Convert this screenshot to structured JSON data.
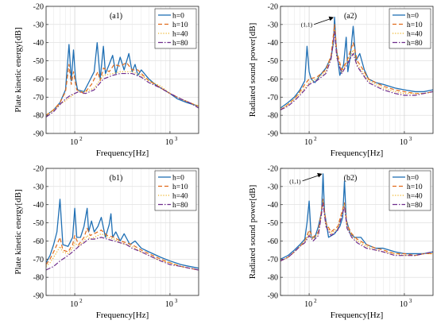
{
  "chart_data": [
    {
      "id": "a1",
      "type": "line",
      "panel_label": "(a1)",
      "xlabel": "Frequency[Hz]",
      "ylabel": "Plate kinetic energy[dB]",
      "xscale": "log",
      "xlim": [
        50,
        2000
      ],
      "ylim": [
        -90,
        -20
      ],
      "yticks": [
        -90,
        -80,
        -70,
        -60,
        -50,
        -40,
        -30,
        -20
      ],
      "xticks": [
        {
          "value": 100,
          "base": "10",
          "exp": "2"
        },
        {
          "value": 1000,
          "base": "10",
          "exp": "3"
        }
      ],
      "grid": true,
      "legend": "top-right",
      "annotation": null,
      "series": [
        {
          "name": "h=0",
          "color": "#1f6fb4",
          "dash": "solid",
          "x": [
            50,
            60,
            70,
            80,
            87,
            92,
            97,
            102,
            107,
            125,
            140,
            160,
            172,
            185,
            200,
            210,
            230,
            250,
            270,
            300,
            330,
            370,
            400,
            430,
            460,
            500,
            600,
            700,
            800,
            1000,
            1200,
            1500,
            2000
          ],
          "y": [
            -80,
            -77,
            -73,
            -66,
            -41,
            -61,
            -44,
            -60,
            -66,
            -67,
            -62,
            -56,
            -40,
            -60,
            -42,
            -57,
            -52,
            -47,
            -57,
            -48,
            -55,
            -46,
            -56,
            -52,
            -58,
            -55,
            -60,
            -63,
            -65,
            -68,
            -71,
            -73,
            -75
          ]
        },
        {
          "name": "h=10",
          "color": "#e06a1b",
          "dash": "dashed",
          "x": [
            50,
            60,
            70,
            80,
            87,
            92,
            97,
            105,
            125,
            150,
            175,
            185,
            200,
            230,
            260,
            300,
            350,
            400,
            460,
            500,
            600,
            700,
            800,
            1000,
            1300,
            1600,
            2000
          ],
          "y": [
            -80,
            -77,
            -73,
            -67,
            -52,
            -63,
            -56,
            -66,
            -68,
            -63,
            -56,
            -61,
            -54,
            -56,
            -52,
            -53,
            -51,
            -55,
            -55,
            -57,
            -61,
            -63,
            -65,
            -68,
            -71,
            -73,
            -75
          ]
        },
        {
          "name": "h=40",
          "color": "#edb120",
          "dash": "dotted",
          "x": [
            50,
            60,
            70,
            80,
            90,
            100,
            110,
            130,
            160,
            200,
            250,
            300,
            400,
            500,
            600,
            800,
            1000,
            1300,
            1600,
            2000
          ],
          "y": [
            -80,
            -77,
            -74,
            -72,
            -70,
            -68,
            -67,
            -67,
            -65,
            -58,
            -57,
            -56,
            -56,
            -58,
            -61,
            -64,
            -68,
            -71,
            -73,
            -75
          ]
        },
        {
          "name": "h=80",
          "color": "#6e2c8c",
          "dash": "dashdot",
          "x": [
            50,
            60,
            70,
            80,
            90,
            100,
            110,
            130,
            160,
            200,
            250,
            300,
            400,
            500,
            600,
            800,
            1000,
            1300,
            1600,
            2000
          ],
          "y": [
            -81,
            -78,
            -74,
            -71,
            -69,
            -68,
            -67,
            -68,
            -66,
            -60,
            -58,
            -57,
            -57,
            -59,
            -62,
            -65,
            -68,
            -71,
            -73,
            -76
          ]
        }
      ]
    },
    {
      "id": "a2",
      "type": "line",
      "panel_label": "(a2)",
      "xlabel": "Frequency[Hz]",
      "ylabel": "Radiated sound power[dB]",
      "xscale": "log",
      "xlim": [
        50,
        2000
      ],
      "ylim": [
        -90,
        -20
      ],
      "yticks": [
        -90,
        -80,
        -70,
        -60,
        -50,
        -40,
        -30,
        -20
      ],
      "xticks": [
        {
          "value": 100,
          "base": "10",
          "exp": "2"
        },
        {
          "value": 1000,
          "base": "10",
          "exp": "3"
        }
      ],
      "grid": true,
      "legend": "top-right",
      "annotation": {
        "text": "(1,1)",
        "x": 185,
        "y": -26
      },
      "series": [
        {
          "name": "h=0",
          "color": "#1f6fb4",
          "dash": "solid",
          "x": [
            50,
            60,
            70,
            80,
            90,
            95,
            100,
            105,
            115,
            130,
            150,
            170,
            180,
            185,
            192,
            210,
            230,
            245,
            255,
            270,
            290,
            310,
            340,
            380,
            420,
            500,
            600,
            800,
            1000,
            1300,
            1600,
            2000
          ],
          "y": [
            -76,
            -73,
            -70,
            -66,
            -61,
            -42,
            -56,
            -60,
            -62,
            -58,
            -54,
            -48,
            -40,
            -26,
            -42,
            -58,
            -52,
            -37,
            -56,
            -48,
            -31,
            -50,
            -46,
            -55,
            -60,
            -62,
            -63,
            -65,
            -66,
            -67,
            -67,
            -66
          ]
        },
        {
          "name": "h=10",
          "color": "#e06a1b",
          "dash": "dashed",
          "x": [
            50,
            60,
            70,
            80,
            90,
            100,
            120,
            150,
            170,
            185,
            195,
            220,
            250,
            290,
            320,
            360,
            420,
            500,
            600,
            800,
            1000,
            1300,
            1600,
            2000
          ],
          "y": [
            -77,
            -74,
            -71,
            -67,
            -63,
            -60,
            -59,
            -55,
            -47,
            -30,
            -45,
            -55,
            -50,
            -40,
            -50,
            -54,
            -60,
            -62,
            -64,
            -66,
            -67,
            -68,
            -68,
            -67
          ]
        },
        {
          "name": "h=40",
          "color": "#edb120",
          "dash": "dotted",
          "x": [
            50,
            60,
            70,
            80,
            90,
            100,
            120,
            150,
            170,
            185,
            195,
            220,
            250,
            290,
            320,
            360,
            420,
            500,
            600,
            800,
            1000,
            1300,
            1600,
            2000
          ],
          "y": [
            -77,
            -74,
            -71,
            -68,
            -65,
            -62,
            -60,
            -56,
            -48,
            -33,
            -47,
            -56,
            -51,
            -44,
            -52,
            -56,
            -61,
            -63,
            -65,
            -67,
            -68,
            -68,
            -68,
            -67
          ]
        },
        {
          "name": "h=80",
          "color": "#6e2c8c",
          "dash": "dashdot",
          "x": [
            50,
            60,
            70,
            80,
            90,
            100,
            120,
            150,
            170,
            185,
            195,
            220,
            250,
            290,
            320,
            360,
            420,
            500,
            600,
            800,
            1000,
            1300,
            1600,
            2000
          ],
          "y": [
            -77,
            -75,
            -72,
            -69,
            -66,
            -63,
            -61,
            -57,
            -49,
            -34,
            -48,
            -57,
            -52,
            -46,
            -53,
            -57,
            -62,
            -64,
            -66,
            -68,
            -69,
            -69,
            -68,
            -67
          ]
        }
      ]
    },
    {
      "id": "b1",
      "type": "line",
      "panel_label": "(b1)",
      "xlabel": "Frequency[Hz]",
      "ylabel": "Plate kinetic energy[dB]",
      "xscale": "log",
      "xlim": [
        50,
        2000
      ],
      "ylim": [
        -90,
        -20
      ],
      "yticks": [
        -90,
        -80,
        -70,
        -60,
        -50,
        -40,
        -30,
        -20
      ],
      "xticks": [
        {
          "value": 100,
          "base": "10",
          "exp": "2"
        },
        {
          "value": 1000,
          "base": "10",
          "exp": "3"
        }
      ],
      "grid": true,
      "legend": "top-right",
      "annotation": null,
      "series": [
        {
          "name": "h=0",
          "color": "#1f6fb4",
          "dash": "solid",
          "x": [
            50,
            55,
            60,
            65,
            70,
            75,
            85,
            95,
            100,
            105,
            115,
            125,
            135,
            140,
            150,
            160,
            175,
            190,
            210,
            230,
            240,
            250,
            270,
            300,
            330,
            380,
            430,
            500,
            600,
            800,
            1000,
            1300,
            1600,
            2000
          ],
          "y": [
            -72,
            -68,
            -62,
            -55,
            -37,
            -62,
            -63,
            -58,
            -42,
            -58,
            -58,
            -52,
            -42,
            -55,
            -49,
            -55,
            -52,
            -47,
            -58,
            -51,
            -45,
            -58,
            -55,
            -60,
            -56,
            -62,
            -60,
            -64,
            -66,
            -69,
            -71,
            -73,
            -74,
            -75
          ]
        },
        {
          "name": "h=10",
          "color": "#e06a1b",
          "dash": "dashed",
          "x": [
            50,
            55,
            60,
            65,
            70,
            75,
            85,
            95,
            100,
            110,
            125,
            135,
            145,
            160,
            190,
            220,
            260,
            300,
            350,
            400,
            500,
            600,
            800,
            1000,
            1300,
            1600,
            2000
          ],
          "y": [
            -73,
            -70,
            -66,
            -62,
            -58,
            -65,
            -66,
            -62,
            -57,
            -62,
            -58,
            -53,
            -57,
            -56,
            -54,
            -57,
            -58,
            -60,
            -61,
            -62,
            -65,
            -67,
            -70,
            -72,
            -74,
            -75,
            -76
          ]
        },
        {
          "name": "h=40",
          "color": "#edb120",
          "dash": "dotted",
          "x": [
            50,
            55,
            60,
            65,
            70,
            75,
            85,
            95,
            100,
            110,
            125,
            135,
            145,
            160,
            190,
            220,
            260,
            300,
            350,
            400,
            500,
            600,
            800,
            1000,
            1300,
            1600,
            2000
          ],
          "y": [
            -74,
            -72,
            -69,
            -66,
            -63,
            -66,
            -67,
            -64,
            -61,
            -63,
            -60,
            -57,
            -59,
            -58,
            -56,
            -58,
            -59,
            -61,
            -62,
            -63,
            -66,
            -68,
            -71,
            -72,
            -74,
            -75,
            -76
          ]
        },
        {
          "name": "h=80",
          "color": "#6e2c8c",
          "dash": "dashdot",
          "x": [
            50,
            60,
            70,
            80,
            90,
            100,
            110,
            125,
            140,
            160,
            190,
            220,
            260,
            300,
            350,
            400,
            500,
            600,
            800,
            1000,
            1300,
            1600,
            2000
          ],
          "y": [
            -76,
            -74,
            -71,
            -69,
            -67,
            -65,
            -63,
            -61,
            -59,
            -59,
            -58,
            -59,
            -60,
            -61,
            -62,
            -64,
            -66,
            -68,
            -71,
            -73,
            -74,
            -75,
            -76
          ]
        }
      ]
    },
    {
      "id": "b2",
      "type": "line",
      "panel_label": "(b2)",
      "xlabel": "Frequency[Hz]",
      "ylabel": "Radiated sound power[dB]",
      "xscale": "log",
      "xlim": [
        50,
        2000
      ],
      "ylim": [
        -90,
        -20
      ],
      "yticks": [
        -90,
        -80,
        -70,
        -60,
        -50,
        -40,
        -30,
        -20
      ],
      "xticks": [
        {
          "value": 100,
          "base": "10",
          "exp": "2"
        },
        {
          "value": 1000,
          "base": "10",
          "exp": "3"
        }
      ],
      "grid": true,
      "legend": "top-right",
      "annotation": {
        "text": "(1,1)",
        "x": 140,
        "y": -23
      },
      "series": [
        {
          "name": "h=0",
          "color": "#1f6fb4",
          "dash": "solid",
          "x": [
            50,
            60,
            70,
            80,
            90,
            95,
            100,
            105,
            115,
            125,
            135,
            140,
            145,
            160,
            185,
            210,
            225,
            235,
            245,
            270,
            300,
            350,
            400,
            500,
            600,
            800,
            1000,
            1300,
            1600,
            2000
          ],
          "y": [
            -70,
            -68,
            -65,
            -62,
            -59,
            -50,
            -38,
            -58,
            -58,
            -52,
            -44,
            -23,
            -44,
            -58,
            -56,
            -52,
            -47,
            -27,
            -48,
            -56,
            -58,
            -58,
            -62,
            -64,
            -64,
            -66,
            -67,
            -67,
            -67,
            -66
          ]
        },
        {
          "name": "h=10",
          "color": "#e06a1b",
          "dash": "dashed",
          "x": [
            50,
            60,
            70,
            80,
            90,
            100,
            110,
            125,
            140,
            150,
            170,
            200,
            235,
            250,
            280,
            320,
            400,
            500,
            600,
            800,
            1000,
            1300,
            1600,
            2000
          ],
          "y": [
            -71,
            -69,
            -66,
            -63,
            -60,
            -54,
            -58,
            -55,
            -37,
            -50,
            -55,
            -52,
            -39,
            -51,
            -56,
            -59,
            -62,
            -64,
            -65,
            -67,
            -67,
            -68,
            -67,
            -67
          ]
        },
        {
          "name": "h=40",
          "color": "#edb120",
          "dash": "dotted",
          "x": [
            50,
            60,
            70,
            80,
            90,
            100,
            110,
            125,
            140,
            150,
            170,
            200,
            235,
            250,
            280,
            320,
            400,
            500,
            600,
            800,
            1000,
            1300,
            1600,
            2000
          ],
          "y": [
            -71,
            -69,
            -66,
            -63,
            -60,
            -56,
            -59,
            -56,
            -38,
            -51,
            -56,
            -53,
            -40,
            -52,
            -57,
            -60,
            -63,
            -65,
            -66,
            -67,
            -68,
            -68,
            -67,
            -67
          ]
        },
        {
          "name": "h=80",
          "color": "#6e2c8c",
          "dash": "dashdot",
          "x": [
            50,
            60,
            70,
            80,
            90,
            100,
            110,
            125,
            140,
            150,
            170,
            200,
            235,
            250,
            280,
            320,
            400,
            500,
            600,
            800,
            1000,
            1300,
            1600,
            2000
          ],
          "y": [
            -71,
            -69,
            -66,
            -63,
            -61,
            -57,
            -60,
            -57,
            -39,
            -52,
            -57,
            -54,
            -41,
            -53,
            -58,
            -61,
            -64,
            -65,
            -66,
            -68,
            -68,
            -68,
            -67,
            -66
          ]
        }
      ]
    }
  ]
}
